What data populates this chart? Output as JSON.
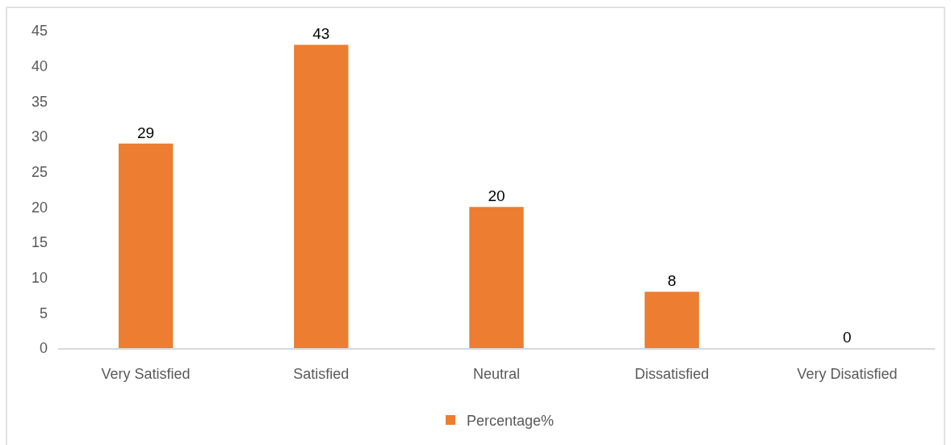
{
  "chart_data": {
    "type": "bar",
    "categories": [
      "Very Satisfied",
      "Satisfied",
      "Neutral",
      "Dissatisfied",
      "Very Disatisfied"
    ],
    "series": [
      {
        "name": "Percentage%",
        "color": "#ed7d31",
        "values": [
          29,
          43,
          20,
          8,
          0
        ]
      }
    ],
    "ylim": [
      0,
      45
    ],
    "yticks": [
      0,
      5,
      10,
      15,
      20,
      25,
      30,
      35,
      40,
      45
    ],
    "grid": false,
    "legend": "bottom",
    "data_labels": true
  }
}
